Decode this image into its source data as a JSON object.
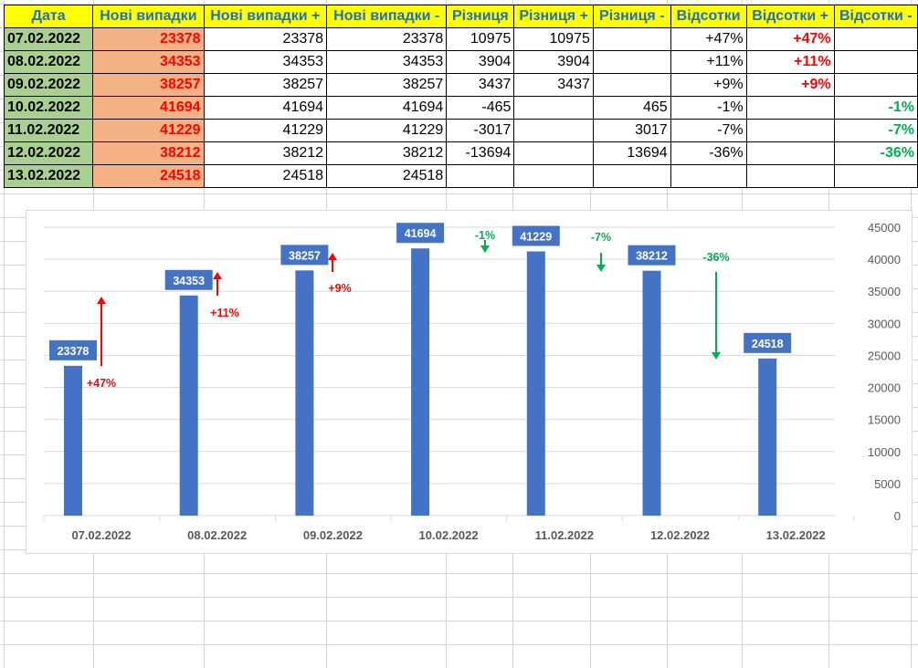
{
  "table": {
    "headers": [
      "Дата",
      "Нові випадки",
      "Нові випадки +",
      "Нові випадки -",
      "Різниця",
      "Різниця +",
      "Різниця -",
      "Відсотки",
      "Відсотки +",
      "Відсотки -"
    ],
    "rows": [
      [
        "07.02.2022",
        "23378",
        "23378",
        "23378",
        "10975",
        "10975",
        "",
        "+47%",
        "+47%",
        ""
      ],
      [
        "08.02.2022",
        "34353",
        "34353",
        "34353",
        "3904",
        "3904",
        "",
        "+11%",
        "+11%",
        ""
      ],
      [
        "09.02.2022",
        "38257",
        "38257",
        "38257",
        "3437",
        "3437",
        "",
        "+9%",
        "+9%",
        ""
      ],
      [
        "10.02.2022",
        "41694",
        "41694",
        "41694",
        "-465",
        "",
        "465",
        "-1%",
        "",
        "-1%"
      ],
      [
        "11.02.2022",
        "41229",
        "41229",
        "41229",
        "-3017",
        "",
        "3017",
        "-7%",
        "",
        "-7%"
      ],
      [
        "12.02.2022",
        "38212",
        "38212",
        "38212",
        "-13694",
        "",
        "13694",
        "-36%",
        "",
        "-36%"
      ],
      [
        "13.02.2022",
        "24518",
        "24518",
        "24518",
        "",
        "",
        "",
        "",
        "",
        ""
      ]
    ]
  },
  "chart_data": {
    "type": "bar",
    "categories": [
      "07.02.2022",
      "08.02.2022",
      "09.02.2022",
      "10.02.2022",
      "11.02.2022",
      "12.02.2022",
      "13.02.2022"
    ],
    "series": [
      {
        "name": "Нові випадки",
        "values": [
          23378,
          34353,
          38257,
          41694,
          41229,
          38212,
          24518
        ]
      }
    ],
    "changes": [
      {
        "label": "+47%",
        "dir": "up"
      },
      {
        "label": "+11%",
        "dir": "up"
      },
      {
        "label": "+9%",
        "dir": "up"
      },
      {
        "label": "-1%",
        "dir": "down"
      },
      {
        "label": "-7%",
        "dir": "down"
      },
      {
        "label": "-36%",
        "dir": "down"
      }
    ],
    "ylim": [
      0,
      45000
    ],
    "yticks": [
      0,
      5000,
      10000,
      15000,
      20000,
      25000,
      30000,
      35000,
      40000,
      45000
    ],
    "grid": true,
    "colors": {
      "bar": "#4472c4",
      "up": "#ff0000",
      "down": "#00b050"
    }
  }
}
